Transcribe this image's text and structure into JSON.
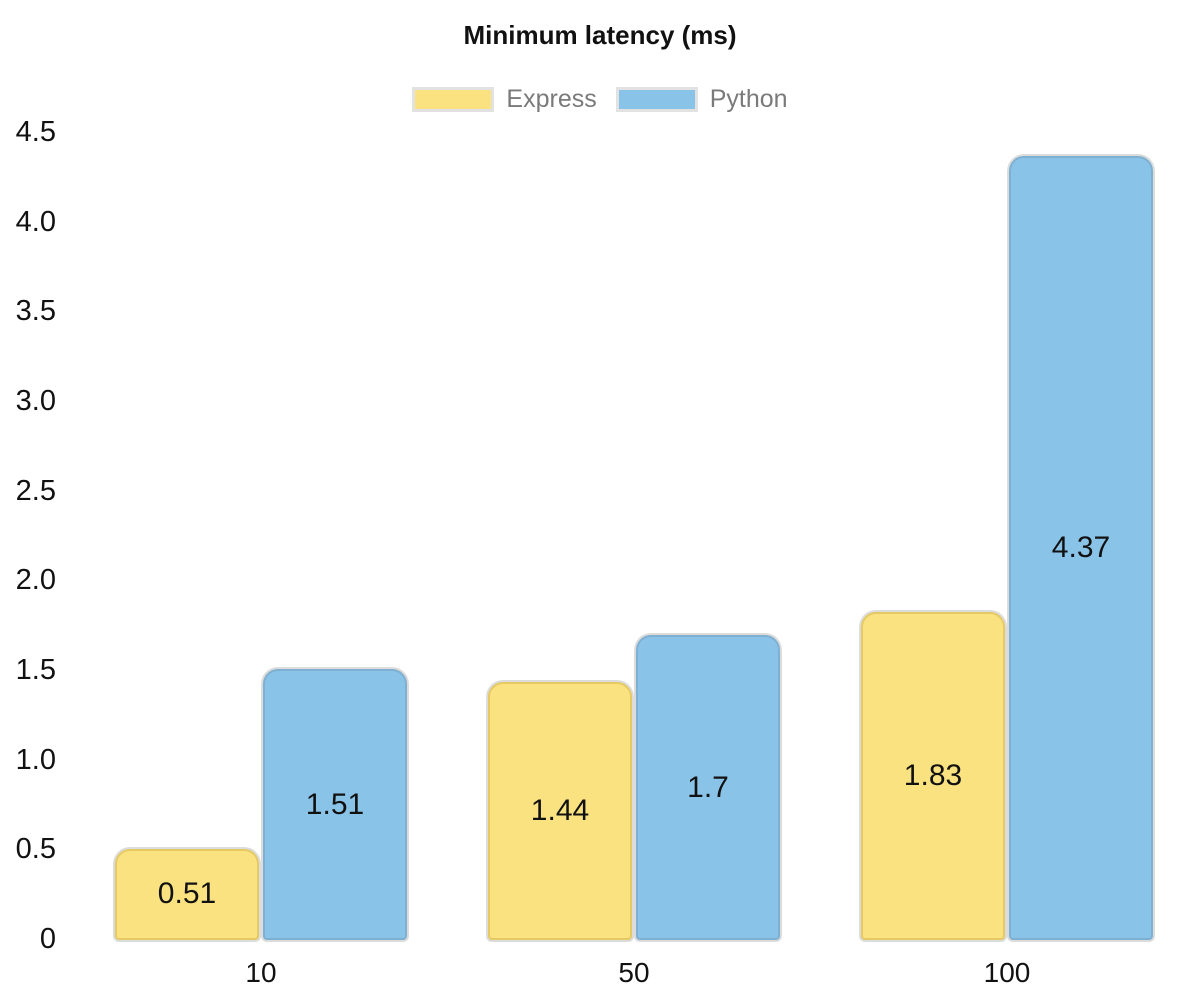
{
  "chart_data": {
    "type": "bar",
    "title": "Minimum latency (ms)",
    "xlabel": "",
    "ylabel": "",
    "categories": [
      "10",
      "50",
      "100"
    ],
    "series": [
      {
        "name": "Express",
        "color": "#fae281",
        "border_color": "#e5c963",
        "values": [
          0.51,
          1.44,
          1.83
        ],
        "value_labels": [
          "0.51",
          "1.44",
          "1.83"
        ]
      },
      {
        "name": "Python",
        "color": "#8ac3e8",
        "border_color": "#7fb0d1",
        "values": [
          1.51,
          1.7,
          4.37
        ],
        "value_labels": [
          "1.51",
          "1.7",
          "4.37"
        ]
      }
    ],
    "ylim": [
      0,
      4.5
    ],
    "yticks": [
      "0",
      "0.5",
      "1.0",
      "1.5",
      "2.0",
      "2.5",
      "3.0",
      "3.5",
      "4.0",
      "4.5"
    ],
    "legend_position": "top",
    "grid": false,
    "colors": {
      "axis_text": "#111111",
      "legend_text": "#7a7a7a",
      "bar_outline_halo": "#dcdcdc",
      "background": "#ffffff"
    }
  }
}
